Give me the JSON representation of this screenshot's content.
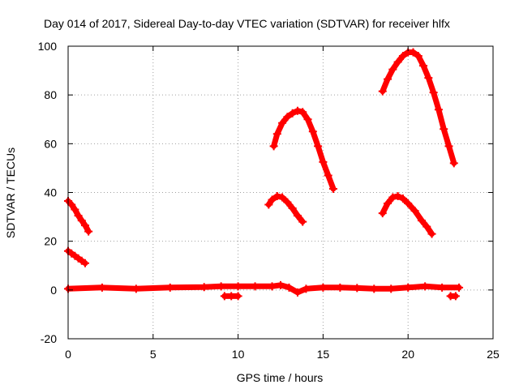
{
  "chart_data": {
    "type": "scatter",
    "title": "Day 014 of 2017, Sidereal Day-to-day VTEC variation (SDTVAR) for receiver hlfx",
    "xlabel": "GPS time / hours",
    "ylabel": "SDTVAR / TECUs",
    "xlim": [
      0,
      25
    ],
    "ylim": [
      -20,
      100
    ],
    "xticks": [
      0,
      5,
      10,
      15,
      20,
      25
    ],
    "yticks": [
      -20,
      0,
      20,
      40,
      60,
      80,
      100
    ],
    "grid": true,
    "legend": "none",
    "series_color": "#ff0000",
    "series": [
      {
        "x": [
          0.0,
          0.2,
          0.4,
          0.6,
          0.8,
          1.0,
          1.2
        ],
        "y": [
          36.5,
          35.0,
          33.0,
          30.5,
          28.5,
          26.5,
          24.0
        ]
      },
      {
        "x": [
          0.0,
          0.2,
          0.4,
          0.6,
          0.8,
          1.0
        ],
        "y": [
          16.0,
          15.0,
          14.0,
          13.0,
          12.0,
          11.0
        ]
      },
      {
        "x": [
          0.0,
          2.0,
          4.0,
          6.0,
          8.0,
          9.0,
          10.0,
          11.0,
          12.0,
          12.5,
          13.0,
          13.5,
          14.0,
          15.0,
          16.0,
          17.0,
          18.0,
          19.0,
          20.0,
          21.0,
          22.0,
          23.0
        ],
        "y": [
          0.5,
          1.0,
          0.5,
          1.0,
          1.2,
          1.5,
          1.5,
          1.5,
          1.5,
          2.0,
          1.0,
          -1.0,
          0.5,
          1.0,
          1.0,
          0.8,
          0.5,
          0.5,
          1.0,
          1.5,
          1.0,
          1.0
        ]
      },
      {
        "x": [
          9.2,
          9.6,
          10.0
        ],
        "y": [
          -2.5,
          -2.5,
          -2.5
        ]
      },
      {
        "x": [
          22.5,
          22.8
        ],
        "y": [
          -2.5,
          -2.5
        ]
      },
      {
        "x": [
          11.8,
          12.0,
          12.3,
          12.6,
          12.9,
          13.2,
          13.5,
          13.8
        ],
        "y": [
          35.0,
          37.0,
          38.5,
          38.0,
          36.0,
          33.5,
          30.5,
          28.0
        ]
      },
      {
        "x": [
          12.1,
          12.3,
          12.6,
          12.9,
          13.2,
          13.5,
          13.8,
          14.1,
          14.4,
          14.7,
          15.0,
          15.3,
          15.6
        ],
        "y": [
          59.0,
          64.0,
          68.5,
          71.0,
          72.5,
          73.5,
          73.0,
          70.0,
          65.0,
          59.0,
          52.5,
          47.0,
          41.5
        ]
      },
      {
        "x": [
          18.5,
          18.8,
          19.1,
          19.4,
          19.7,
          20.0,
          20.4,
          20.8,
          21.1,
          21.4
        ],
        "y": [
          31.5,
          35.5,
          38.0,
          38.5,
          37.5,
          35.5,
          32.5,
          28.5,
          26.0,
          23.0
        ]
      },
      {
        "x": [
          18.5,
          18.8,
          19.1,
          19.4,
          19.7,
          20.0,
          20.3,
          20.6,
          20.9,
          21.2,
          21.5,
          21.8,
          22.1,
          22.4,
          22.7
        ],
        "y": [
          81.5,
          86.5,
          90.5,
          93.5,
          96.0,
          97.5,
          97.5,
          96.0,
          92.0,
          87.0,
          81.0,
          74.0,
          66.0,
          59.0,
          52.0
        ]
      }
    ]
  }
}
